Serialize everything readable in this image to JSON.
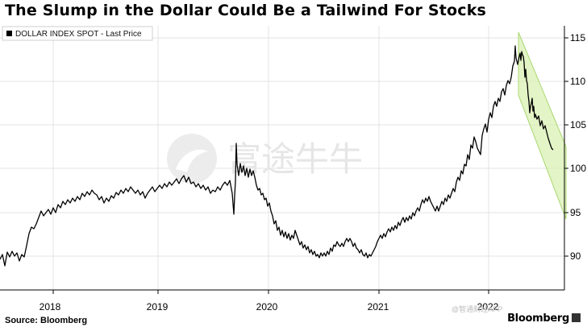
{
  "header": {
    "title": "The Slump in the Dollar Could Be a Tailwind For Stocks"
  },
  "footer": {
    "source": "Source: Bloomberg",
    "brand": "Bloomberg"
  },
  "watermark": {
    "text": "富途牛牛",
    "overlay_text": "@智通财经APP"
  },
  "colors": {
    "line": "#000000",
    "channel_fill": "#d9f0b3",
    "channel_stroke": "#a8d870",
    "grid": "#e3e3e3",
    "axis": "#000000"
  },
  "chart_data": {
    "type": "line",
    "legend": [
      "DOLLAR INDEX SPOT - Last Price"
    ],
    "legend_placement": "top-left",
    "grid": true,
    "x_tick_labels": [
      "2018",
      "2019",
      "2020",
      "2021",
      "2022"
    ],
    "y_tick_labels": [
      "90",
      "95",
      "100",
      "105",
      "110",
      "115"
    ],
    "y_axis_side": "right",
    "xlim": [
      "2017-09",
      "2022-12"
    ],
    "ylim": [
      86,
      116
    ],
    "series": [
      {
        "name": "DOLLAR INDEX SPOT - Last Price",
        "points": [
          [
            "2017-09",
            89.5
          ],
          [
            "2017-10",
            91.5
          ],
          [
            "2017-11",
            90.5
          ],
          [
            "2017-12",
            91.0
          ],
          [
            "2018-01",
            93.0
          ],
          [
            "2018-02",
            91.0
          ],
          [
            "2018-03",
            93.5
          ],
          [
            "2018-04",
            94.0
          ],
          [
            "2018-05",
            94.5
          ],
          [
            "2018-06",
            94.0
          ],
          [
            "2018-07",
            95.5
          ],
          [
            "2018-08",
            95.5
          ],
          [
            "2018-09",
            96.5
          ],
          [
            "2018-10",
            96.8
          ],
          [
            "2018-11",
            97.5
          ],
          [
            "2018-12",
            96.5
          ],
          [
            "2019-01",
            96.0
          ],
          [
            "2019-02",
            96.3
          ],
          [
            "2019-03",
            97.0
          ],
          [
            "2019-04",
            97.3
          ],
          [
            "2019-05",
            97.5
          ],
          [
            "2019-06",
            97.0
          ],
          [
            "2019-07",
            97.5
          ],
          [
            "2019-08",
            98.0
          ],
          [
            "2019-09",
            98.5
          ],
          [
            "2019-10",
            98.2
          ],
          [
            "2019-11",
            97.8
          ],
          [
            "2019-12",
            97.5
          ],
          [
            "2020-01",
            97.0
          ],
          [
            "2020-02",
            98.0
          ],
          [
            "2020-03a",
            95.0
          ],
          [
            "2020-03b",
            102.8
          ],
          [
            "2020-04",
            100.0
          ],
          [
            "2020-05",
            99.8
          ],
          [
            "2020-06",
            100.0
          ],
          [
            "2020-07",
            96.0
          ],
          [
            "2020-08",
            93.5
          ],
          [
            "2020-09",
            93.0
          ],
          [
            "2020-10",
            93.5
          ],
          [
            "2020-11",
            92.5
          ],
          [
            "2020-12",
            91.0
          ],
          [
            "2021-01",
            90.0
          ],
          [
            "2021-02",
            90.5
          ],
          [
            "2021-03",
            92.5
          ],
          [
            "2021-04",
            91.5
          ],
          [
            "2021-05",
            90.0
          ],
          [
            "2021-06",
            90.5
          ],
          [
            "2021-07",
            92.0
          ],
          [
            "2021-08",
            92.5
          ],
          [
            "2021-09",
            93.0
          ],
          [
            "2021-10",
            94.0
          ],
          [
            "2021-11",
            94.5
          ],
          [
            "2021-12",
            96.0
          ],
          [
            "2022-01",
            95.5
          ],
          [
            "2022-02",
            96.5
          ],
          [
            "2022-03",
            98.5
          ],
          [
            "2022-04",
            101.0
          ],
          [
            "2022-05",
            103.5
          ],
          [
            "2022-06",
            104.5
          ],
          [
            "2022-07",
            106.5
          ],
          [
            "2022-08",
            108.5
          ],
          [
            "2022-09",
            111.5
          ],
          [
            "2022-10",
            114.0
          ],
          [
            "2022-11",
            112.5
          ],
          [
            "2022-12a",
            106.0
          ],
          [
            "2022-12b",
            104.5
          ],
          [
            "2023-01",
            103.0
          ],
          [
            "2023-02",
            101.7
          ]
        ]
      }
    ],
    "annotations": [
      {
        "type": "channel",
        "upper": [
          [
            "2022-10",
            114.8
          ],
          [
            "2023-02",
            104.8
          ]
        ],
        "lower": [
          [
            "2022-10",
            108.0
          ],
          [
            "2023-02",
            94.0
          ]
        ]
      }
    ]
  }
}
